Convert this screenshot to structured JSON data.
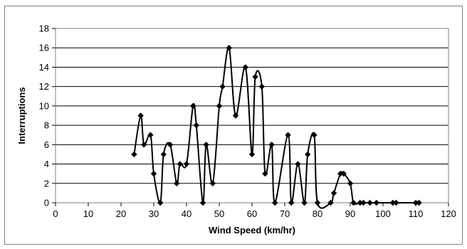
{
  "chart_data": {
    "type": "line",
    "title": "",
    "xlabel": "Wind Speed (km/hr)",
    "ylabel": "Interruptions",
    "xlim": [
      0,
      120
    ],
    "ylim": [
      0,
      18
    ],
    "xticks": [
      0,
      10,
      20,
      30,
      40,
      50,
      60,
      70,
      80,
      90,
      100,
      110,
      120
    ],
    "yticks": [
      0,
      2,
      4,
      6,
      8,
      10,
      12,
      14,
      16,
      18
    ],
    "grid": "horizontal",
    "legend": "none",
    "line_style": "smoothed",
    "marker": "diamond",
    "series": [
      {
        "color": "#000000",
        "points": [
          [
            24,
            5
          ],
          [
            26,
            9
          ],
          [
            27,
            6
          ],
          [
            29,
            7
          ],
          [
            30,
            3
          ],
          [
            32,
            0
          ],
          [
            33,
            5
          ],
          [
            35,
            6
          ],
          [
            37,
            2
          ],
          [
            38,
            4
          ],
          [
            40,
            4
          ],
          [
            42,
            10
          ],
          [
            43,
            8
          ],
          [
            45,
            0
          ],
          [
            46,
            6
          ],
          [
            48,
            2
          ],
          [
            50,
            10
          ],
          [
            51,
            12
          ],
          [
            53,
            16
          ],
          [
            55,
            9
          ],
          [
            58,
            14
          ],
          [
            60,
            5
          ],
          [
            61,
            13
          ],
          [
            63,
            12
          ],
          [
            64,
            3
          ],
          [
            66,
            6
          ],
          [
            67,
            0
          ],
          [
            71,
            7
          ],
          [
            72,
            0
          ],
          [
            74,
            4
          ],
          [
            76,
            0
          ],
          [
            77,
            5
          ],
          [
            79,
            7
          ],
          [
            80,
            0
          ],
          [
            84,
            0
          ],
          [
            85,
            1
          ],
          [
            87,
            3
          ],
          [
            88,
            3
          ],
          [
            90,
            2
          ],
          [
            91,
            0
          ],
          [
            93,
            0
          ],
          [
            94,
            0
          ],
          [
            96,
            0
          ],
          [
            98,
            0
          ],
          [
            103,
            0
          ],
          [
            104,
            0
          ],
          [
            110,
            0
          ],
          [
            111,
            0
          ]
        ]
      }
    ]
  }
}
